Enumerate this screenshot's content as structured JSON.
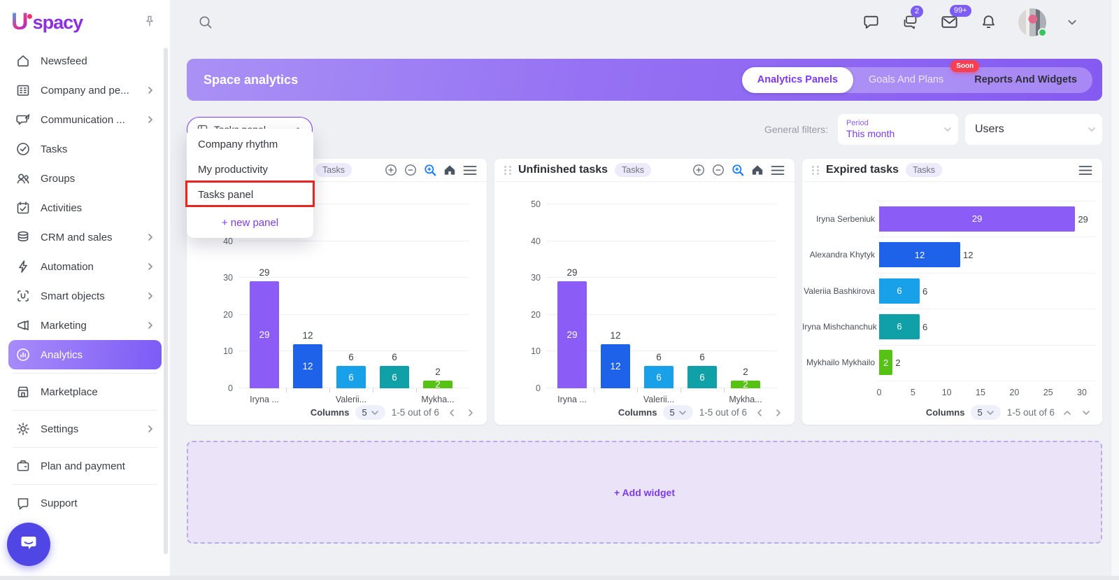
{
  "sidebar": {
    "brand_u": "U",
    "brand_rest": "spacy",
    "items": [
      {
        "id": "newsfeed",
        "label": "Newsfeed"
      },
      {
        "id": "company",
        "label": "Company and pe...",
        "arrow": true
      },
      {
        "id": "communication",
        "label": "Communication ...",
        "arrow": true
      },
      {
        "id": "tasks",
        "label": "Tasks"
      },
      {
        "id": "groups",
        "label": "Groups"
      },
      {
        "id": "activities",
        "label": "Activities"
      },
      {
        "id": "crm",
        "label": "CRM and sales",
        "arrow": true
      },
      {
        "id": "automation",
        "label": "Automation",
        "arrow": true
      },
      {
        "id": "smart-objects",
        "label": "Smart objects",
        "arrow": true
      },
      {
        "id": "marketing",
        "label": "Marketing",
        "arrow": true
      },
      {
        "id": "analytics",
        "label": "Analytics",
        "active": true
      },
      {
        "divider": true
      },
      {
        "id": "marketplace",
        "label": "Marketplace"
      },
      {
        "divider": true
      },
      {
        "id": "settings",
        "label": "Settings",
        "arrow": true
      },
      {
        "divider": true
      },
      {
        "id": "plan",
        "label": "Plan and payment"
      },
      {
        "divider": true
      },
      {
        "id": "support",
        "label": "Support"
      }
    ]
  },
  "topbar": {
    "chats_badge": "2",
    "mail_badge": "99+"
  },
  "banner": {
    "title": "Space analytics",
    "tabs": [
      {
        "label": "Analytics Panels",
        "state": "active"
      },
      {
        "label": "Goals And Plans",
        "state": "disabled"
      },
      {
        "label": "Reports And Widgets",
        "state": "normal"
      }
    ],
    "soon_badge": "Soon"
  },
  "panel_selector": {
    "value": "Tasks panel",
    "options": [
      "Company rhythm",
      "My productivity",
      "Tasks panel"
    ],
    "highlighted_option": "Tasks panel",
    "new_panel_label": "+ new panel"
  },
  "filters": {
    "label": "General filters:",
    "period_label": "Period",
    "period_value": "This month",
    "users_value": "Users"
  },
  "accent_colors": {
    "primary_purple": "#7c3aed",
    "banner_gradient_start": "#a991f5",
    "banner_gradient_end": "#855af0",
    "badge_purple": "#7d5bf6",
    "soon_red": "#fa3e52",
    "annotation_red": "#e8251f"
  },
  "chart_data": [
    {
      "type": "bar",
      "title": "",
      "badge": "Tasks",
      "categories": [
        "Iryna Serbeniuk",
        "Alexandra Khytyk",
        "Valeriia Bashkirova",
        "Iryna Mishchanchuk",
        "Mykhailo Mykhailo"
      ],
      "values": [
        29,
        12,
        6,
        6,
        2
      ],
      "bar_colors": [
        "#8b5cf6",
        "#1d62e8",
        "#18a0e8",
        "#10a0a8",
        "#56c314"
      ],
      "tick_labels": [
        "Iryna ...",
        "",
        "Valerii...",
        "",
        "Mykha..."
      ],
      "ylim": [
        0,
        50
      ],
      "yticks": [
        0,
        10,
        20,
        30,
        40,
        50
      ],
      "grid": true,
      "toolbar": [
        "zoom-in",
        "zoom-out",
        "zoom-search",
        "home",
        "menu"
      ],
      "footer": {
        "columns_label": "Columns",
        "page_size": "5",
        "range": "1-5 out of 6",
        "nav": "horizontal"
      }
    },
    {
      "type": "bar",
      "title": "Unfinished tasks",
      "badge": "Tasks",
      "categories": [
        "Iryna Serbeniuk",
        "Alexandra Khytyk",
        "Valeriia Bashkirova",
        "Iryna Mishchanchuk",
        "Mykhailo Mykhailo"
      ],
      "values": [
        29,
        12,
        6,
        6,
        2
      ],
      "bar_colors": [
        "#8b5cf6",
        "#1d62e8",
        "#18a0e8",
        "#10a0a8",
        "#56c314"
      ],
      "tick_labels": [
        "Iryna ...",
        "",
        "Valerii...",
        "",
        "Mykha..."
      ],
      "ylim": [
        0,
        50
      ],
      "yticks": [
        0,
        10,
        20,
        30,
        40,
        50
      ],
      "grid": true,
      "toolbar": [
        "zoom-in",
        "zoom-out",
        "zoom-search",
        "home",
        "menu"
      ],
      "footer": {
        "columns_label": "Columns",
        "page_size": "5",
        "range": "1-5 out of 6",
        "nav": "horizontal"
      }
    },
    {
      "type": "horizontal_bar",
      "title": "Expired tasks",
      "badge": "Tasks",
      "categories": [
        "Iryna Serbeniuk",
        "Alexandra Khytyk",
        "Valeriia Bashkirova",
        "Iryna Mishchanchuk",
        "Mykhailo Mykhailo"
      ],
      "values": [
        29,
        12,
        6,
        6,
        2
      ],
      "bar_colors": [
        "#8b5cf6",
        "#1d62e8",
        "#18a0e8",
        "#10a0a8",
        "#56c314"
      ],
      "xlim": [
        0,
        30
      ],
      "xticks": [
        0,
        5,
        10,
        15,
        20,
        25,
        30
      ],
      "grid": true,
      "toolbar": [
        "menu"
      ],
      "footer": {
        "columns_label": "Columns",
        "page_size": "5",
        "range": "1-5 out of 6",
        "nav": "vertical"
      }
    }
  ],
  "add_widget": {
    "label": "+ Add widget"
  }
}
